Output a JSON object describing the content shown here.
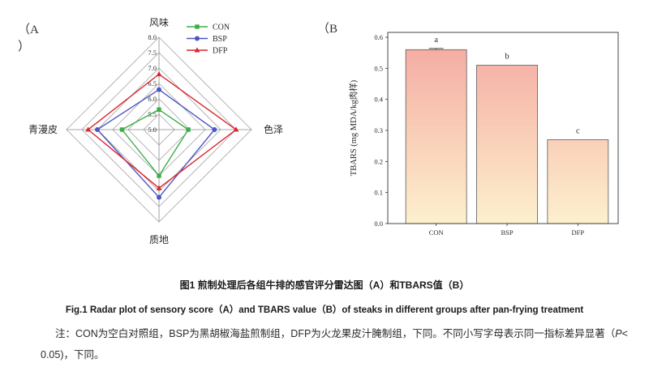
{
  "panel_labels": {
    "a": "（A",
    "a_close": "）",
    "b": "（B"
  },
  "chart_data": [
    {
      "type": "radar",
      "axes": [
        "风味",
        "色泽",
        "质地",
        "青漫皮"
      ],
      "r_range": [
        5.0,
        8.0
      ],
      "r_ticks": [
        "5.0",
        "5.5",
        "6.0",
        "6.5",
        "7.0",
        "7.5",
        "8.0"
      ],
      "grid": true,
      "legend": "top-right",
      "series": [
        {
          "name": "CON",
          "color": "#3cae48",
          "marker": "square",
          "values": [
            5.65,
            5.95,
            6.5,
            6.2
          ]
        },
        {
          "name": "BSP",
          "color": "#4c56c3",
          "marker": "circle",
          "values": [
            6.3,
            6.8,
            7.2,
            7.0
          ]
        },
        {
          "name": "DFP",
          "color": "#da262d",
          "marker": "triangle",
          "values": [
            6.8,
            7.5,
            6.9,
            7.3
          ]
        }
      ]
    },
    {
      "type": "bar",
      "categories": [
        "CON",
        "BSP",
        "DFP"
      ],
      "values": [
        0.56,
        0.51,
        0.27
      ],
      "errors": [
        0.004,
        0,
        0
      ],
      "letters": [
        "a",
        "b",
        "c"
      ],
      "ylabel": "TBARS (mg MDA/kg肉样)",
      "ylim": [
        0,
        0.6
      ],
      "y_ticks": [
        "0.0",
        "0.1",
        "0.2",
        "0.3",
        "0.4",
        "0.5",
        "0.6"
      ],
      "bar_gradient": [
        "#f4a9a1",
        "#fdf0cd"
      ],
      "grid": false
    }
  ],
  "captions": {
    "cn": "图1 煎制处理后各组牛排的感官评分雷达图（A）和TBARS值（B）",
    "en": "Fig.1 Radar plot of sensory score（A）and TBARS value（B）of steaks in different groups after pan-frying treatment",
    "note": {
      "line1": "注：CON为空白对照组，BSP为黑胡椒海盐煎制组，DFP为火龙果皮汁腌制组，下同。不同小写字母表示同一指标差异显著（",
      "p": "P",
      "line1_end": "<",
      "line2": "0.05)，下同。"
    }
  }
}
